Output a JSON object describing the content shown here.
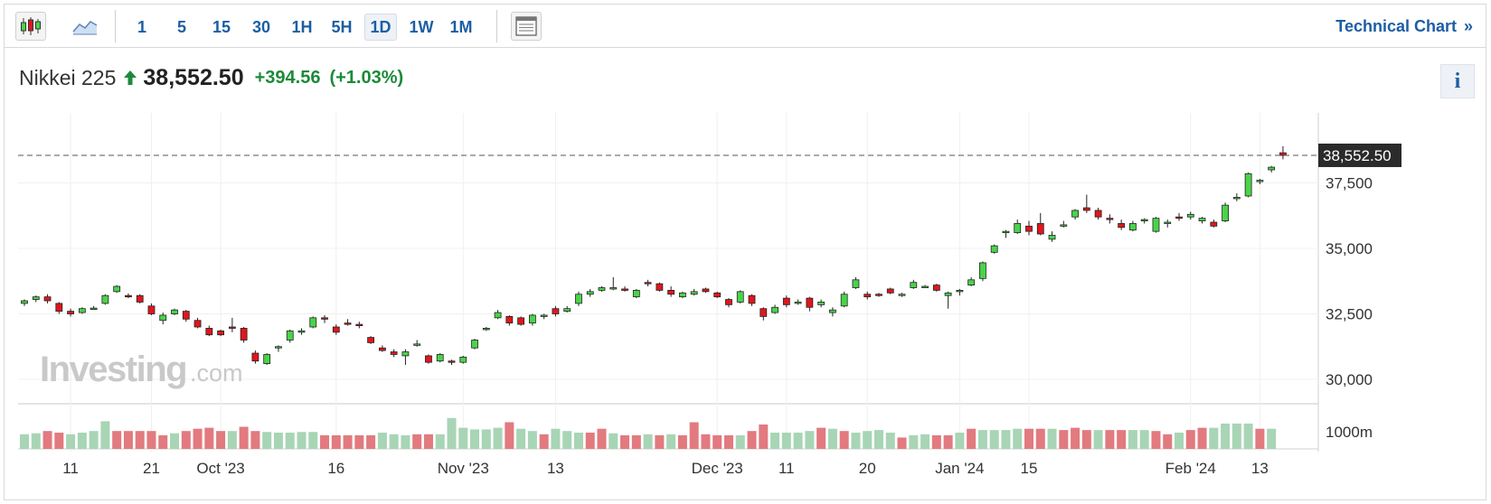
{
  "toolbar": {
    "chart_type_icons": [
      {
        "icon": "candlestick-icon",
        "active": true
      },
      {
        "icon": "area-chart-icon",
        "active": false
      }
    ],
    "timeframes": [
      {
        "label": "1",
        "active": false
      },
      {
        "label": "5",
        "active": false
      },
      {
        "label": "15",
        "active": false
      },
      {
        "label": "30",
        "active": false
      },
      {
        "label": "1H",
        "active": false
      },
      {
        "label": "5H",
        "active": false
      },
      {
        "label": "1D",
        "active": true
      },
      {
        "label": "1W",
        "active": false
      },
      {
        "label": "1M",
        "active": false
      }
    ],
    "layout_icon": "table-layout-icon",
    "technical_chart_label": "Technical Chart",
    "technical_chart_arrow": "»"
  },
  "quote": {
    "name": "Nikkei 225",
    "direction_icon": "arrow-up-icon",
    "price": "38,552.50",
    "change": "+394.56",
    "change_pct": "(+1.03%)"
  },
  "info_button_label": "i",
  "watermark": {
    "brand": "Investing",
    "suffix": ".com"
  },
  "colors": {
    "accent": "#1c5ea4",
    "up": "#4ad44a",
    "down": "#e0161d",
    "positive_text": "#1d8a3a",
    "vol_up": "#a8d5b5",
    "vol_down": "#e27a7f",
    "price_tag_bg": "#2b2b2b"
  },
  "chart_data": {
    "type": "candlestick",
    "title": "Nikkei 225",
    "interval": "1D",
    "last_price": 38552.5,
    "last_price_label": "38,552.50",
    "y_ticks": [
      30000,
      32500,
      35000,
      37500
    ],
    "y_tick_labels": [
      "30,000",
      "32,500",
      "35,000",
      "37,500"
    ],
    "ylim": [
      29000,
      40000
    ],
    "volume_label": "1000m",
    "x_tick_labels": [
      {
        "label": "11",
        "index": 4
      },
      {
        "label": "21",
        "index": 11
      },
      {
        "label": "Oct '23",
        "index": 17
      },
      {
        "label": "16",
        "index": 27
      },
      {
        "label": "Nov '23",
        "index": 38
      },
      {
        "label": "13",
        "index": 46
      },
      {
        "label": "Dec '23",
        "index": 60
      },
      {
        "label": "11",
        "index": 66
      },
      {
        "label": "20",
        "index": 73
      },
      {
        "label": "Jan '24",
        "index": 81
      },
      {
        "label": "15",
        "index": 87
      },
      {
        "label": "Feb '24",
        "index": 101
      },
      {
        "label": "13",
        "index": 107
      }
    ],
    "candles": [
      [
        32900,
        33050,
        32800,
        33000
      ],
      [
        33050,
        33200,
        32950,
        33150
      ],
      [
        33150,
        33250,
        32900,
        33000
      ],
      [
        32900,
        32950,
        32500,
        32600
      ],
      [
        32600,
        32700,
        32400,
        32500
      ],
      [
        32550,
        32750,
        32500,
        32700
      ],
      [
        32700,
        32800,
        32650,
        32720
      ],
      [
        32900,
        33250,
        32850,
        33200
      ],
      [
        33350,
        33600,
        33300,
        33550
      ],
      [
        33200,
        33280,
        33100,
        33180
      ],
      [
        33200,
        33250,
        32900,
        32950
      ],
      [
        32800,
        32900,
        32450,
        32500
      ],
      [
        32250,
        32550,
        32100,
        32450
      ],
      [
        32500,
        32700,
        32450,
        32650
      ],
      [
        32600,
        32650,
        32200,
        32300
      ],
      [
        32250,
        32350,
        31950,
        32000
      ],
      [
        31950,
        32050,
        31650,
        31700
      ],
      [
        31850,
        31900,
        31650,
        31700
      ],
      [
        32000,
        32350,
        31800,
        31950
      ],
      [
        31950,
        32000,
        31400,
        31500
      ],
      [
        31000,
        31100,
        30600,
        30700
      ],
      [
        30600,
        31000,
        30550,
        30950
      ],
      [
        31200,
        31300,
        31050,
        31250
      ],
      [
        31500,
        31900,
        31400,
        31850
      ],
      [
        31800,
        31950,
        31700,
        31850
      ],
      [
        32000,
        32400,
        31950,
        32350
      ],
      [
        32350,
        32450,
        32150,
        32300
      ],
      [
        32000,
        32100,
        31700,
        31800
      ],
      [
        32150,
        32300,
        32050,
        32100
      ],
      [
        32100,
        32200,
        31950,
        32050
      ],
      [
        31600,
        31650,
        31350,
        31400
      ],
      [
        31200,
        31300,
        31050,
        31100
      ],
      [
        31050,
        31150,
        30850,
        30950
      ],
      [
        30900,
        31150,
        30550,
        31050
      ],
      [
        31350,
        31500,
        31250,
        31350
      ],
      [
        30900,
        30950,
        30600,
        30650
      ],
      [
        30700,
        31000,
        30650,
        30950
      ],
      [
        30700,
        30750,
        30550,
        30650
      ],
      [
        30650,
        30900,
        30600,
        30850
      ],
      [
        31200,
        31550,
        31150,
        31500
      ],
      [
        31950,
        32000,
        31850,
        31950
      ],
      [
        32350,
        32650,
        32300,
        32550
      ],
      [
        32400,
        32450,
        32050,
        32150
      ],
      [
        32350,
        32400,
        32050,
        32100
      ],
      [
        32150,
        32500,
        32050,
        32450
      ],
      [
        32400,
        32500,
        32300,
        32450
      ],
      [
        32700,
        32800,
        32400,
        32500
      ],
      [
        32600,
        32800,
        32550,
        32700
      ],
      [
        32900,
        33350,
        32800,
        33250
      ],
      [
        33250,
        33450,
        33150,
        33350
      ],
      [
        33400,
        33550,
        33350,
        33500
      ],
      [
        33450,
        33900,
        33400,
        33500
      ],
      [
        33450,
        33550,
        33350,
        33400
      ],
      [
        33150,
        33450,
        33100,
        33400
      ],
      [
        33700,
        33800,
        33550,
        33650
      ],
      [
        33650,
        33700,
        33350,
        33400
      ],
      [
        33400,
        33550,
        33150,
        33250
      ],
      [
        33150,
        33350,
        33100,
        33300
      ],
      [
        33250,
        33450,
        33200,
        33350
      ],
      [
        33450,
        33500,
        33300,
        33350
      ],
      [
        33300,
        33350,
        33100,
        33150
      ],
      [
        33050,
        33100,
        32750,
        32850
      ],
      [
        32950,
        33400,
        32900,
        33350
      ],
      [
        33200,
        33250,
        32800,
        32900
      ],
      [
        32700,
        32750,
        32250,
        32400
      ],
      [
        32550,
        32850,
        32500,
        32750
      ],
      [
        33100,
        33200,
        32750,
        32850
      ],
      [
        32950,
        33050,
        32850,
        32950
      ],
      [
        33100,
        33150,
        32600,
        32750
      ],
      [
        32850,
        33050,
        32750,
        32950
      ],
      [
        32550,
        32750,
        32400,
        32650
      ],
      [
        32800,
        33350,
        32750,
        33250
      ],
      [
        33500,
        33900,
        33450,
        33800
      ],
      [
        33250,
        33350,
        33050,
        33150
      ],
      [
        33250,
        33300,
        33150,
        33200
      ],
      [
        33450,
        33500,
        33250,
        33300
      ],
      [
        33200,
        33300,
        33150,
        33250
      ],
      [
        33500,
        33800,
        33450,
        33700
      ],
      [
        33550,
        33600,
        33500,
        33550
      ],
      [
        33600,
        33650,
        33350,
        33400
      ],
      [
        33200,
        33350,
        32700,
        33300
      ],
      [
        33350,
        33450,
        33200,
        33400
      ],
      [
        33600,
        33900,
        33550,
        33800
      ],
      [
        33850,
        34500,
        33750,
        34450
      ],
      [
        34850,
        35150,
        34800,
        35100
      ],
      [
        35600,
        35700,
        35400,
        35650
      ],
      [
        35600,
        36100,
        35550,
        35950
      ],
      [
        35850,
        36050,
        35500,
        35650
      ],
      [
        35950,
        36350,
        35500,
        35550
      ],
      [
        35350,
        35650,
        35250,
        35500
      ],
      [
        35850,
        36050,
        35800,
        35900
      ],
      [
        36200,
        36500,
        36100,
        36450
      ],
      [
        36550,
        37050,
        36350,
        36450
      ],
      [
        36450,
        36550,
        36100,
        36200
      ],
      [
        36150,
        36300,
        35950,
        36100
      ],
      [
        35950,
        36100,
        35700,
        35800
      ],
      [
        35700,
        36050,
        35650,
        35950
      ],
      [
        36050,
        36150,
        35950,
        36100
      ],
      [
        35650,
        36200,
        35600,
        36150
      ],
      [
        35950,
        36100,
        35800,
        36000
      ],
      [
        36200,
        36350,
        36050,
        36150
      ],
      [
        36200,
        36400,
        36100,
        36300
      ],
      [
        36050,
        36200,
        35950,
        36150
      ],
      [
        36000,
        36100,
        35800,
        35850
      ],
      [
        36050,
        36750,
        36000,
        36650
      ],
      [
        36900,
        37100,
        36800,
        36950
      ],
      [
        37000,
        37900,
        36950,
        37850
      ],
      [
        37550,
        37650,
        37450,
        37600
      ],
      [
        38000,
        38150,
        37900,
        38100
      ],
      [
        38650,
        38900,
        38400,
        38550
      ]
    ],
    "volume_direction": [
      "up",
      "up",
      "down",
      "down",
      "up",
      "up",
      "up",
      "up",
      "down",
      "down",
      "down",
      "down",
      "down",
      "up",
      "down",
      "down",
      "down",
      "down",
      "up",
      "down",
      "down",
      "up",
      "up",
      "up",
      "up",
      "up",
      "down",
      "down",
      "down",
      "down",
      "down",
      "up",
      "up",
      "up",
      "down",
      "down",
      "up",
      "up",
      "up",
      "up",
      "up",
      "up",
      "down",
      "up",
      "up",
      "down",
      "up",
      "up",
      "up",
      "down",
      "down",
      "up",
      "down",
      "down",
      "up",
      "down",
      "up",
      "down",
      "down",
      "down",
      "down",
      "down",
      "up",
      "down",
      "down",
      "up",
      "up",
      "up",
      "up",
      "down",
      "up",
      "down",
      "up",
      "up",
      "up",
      "up",
      "down",
      "up",
      "up",
      "down",
      "down",
      "up",
      "down",
      "up",
      "up",
      "up",
      "up",
      "down",
      "down",
      "up",
      "down",
      "down",
      "down",
      "up",
      "down",
      "down",
      "up",
      "up",
      "down",
      "down",
      "up",
      "down",
      "down",
      "up",
      "up",
      "up",
      "up",
      "down",
      "up"
    ],
    "volume_relative": [
      0.45,
      0.48,
      0.55,
      0.5,
      0.45,
      0.5,
      0.55,
      0.85,
      0.55,
      0.55,
      0.55,
      0.55,
      0.42,
      0.48,
      0.55,
      0.62,
      0.65,
      0.55,
      0.55,
      0.68,
      0.55,
      0.52,
      0.5,
      0.5,
      0.52,
      0.52,
      0.42,
      0.42,
      0.42,
      0.42,
      0.42,
      0.5,
      0.45,
      0.42,
      0.45,
      0.45,
      0.45,
      0.95,
      0.65,
      0.6,
      0.6,
      0.65,
      0.82,
      0.62,
      0.55,
      0.45,
      0.62,
      0.55,
      0.5,
      0.5,
      0.62,
      0.48,
      0.42,
      0.42,
      0.45,
      0.42,
      0.45,
      0.42,
      0.82,
      0.45,
      0.42,
      0.42,
      0.42,
      0.55,
      0.75,
      0.5,
      0.5,
      0.5,
      0.55,
      0.65,
      0.62,
      0.55,
      0.5,
      0.55,
      0.58,
      0.5,
      0.35,
      0.42,
      0.45,
      0.42,
      0.42,
      0.5,
      0.62,
      0.58,
      0.58,
      0.58,
      0.62,
      0.62,
      0.62,
      0.62,
      0.58,
      0.65,
      0.58,
      0.58,
      0.58,
      0.58,
      0.58,
      0.58,
      0.55,
      0.45,
      0.5,
      0.58,
      0.65,
      0.65,
      0.78,
      0.78,
      0.78,
      0.62,
      0.62
    ]
  }
}
